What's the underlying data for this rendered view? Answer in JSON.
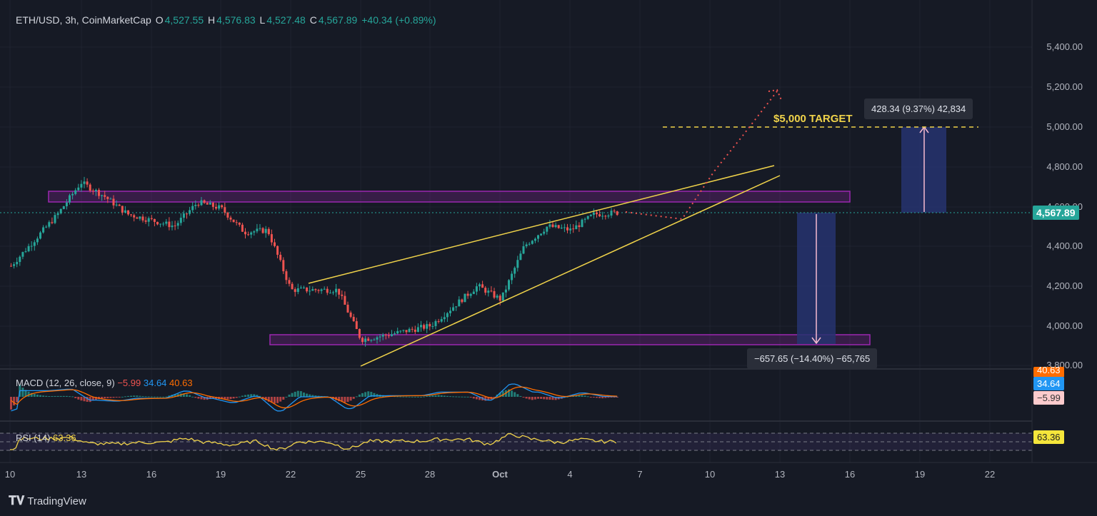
{
  "header": {
    "symbol": "ETH/USD, 3h, CoinMarketCap",
    "o_label": "O",
    "o_value": "4,527.55",
    "h_label": "H",
    "h_value": "4,576.83",
    "l_label": "L",
    "l_value": "4,527.48",
    "c_label": "C",
    "c_value": "4,567.89",
    "change": "+40.34 (+0.89%)"
  },
  "price_axis": [
    "5,400.00",
    "5,200.00",
    "5,000.00",
    "4,800.00",
    "4,600.00",
    "4,400.00",
    "4,200.00",
    "4,000.00",
    "3,800.00"
  ],
  "current_price": "4,567.89",
  "date_axis": [
    "10",
    "13",
    "16",
    "19",
    "22",
    "25",
    "28",
    "Oct",
    "4",
    "7",
    "10",
    "13",
    "16",
    "19",
    "22"
  ],
  "annotations": {
    "target_label": "$5,000 TARGET",
    "up_measure": "428.34 (9.37%) 42,834",
    "down_measure": "−657.65 (−14.40%) −65,765"
  },
  "macd": {
    "label": "MACD (12, 26, close, 9)",
    "hist": "−5.99",
    "macd": "34.64",
    "signal": "40.63",
    "pill_signal": "40.63",
    "pill_macd": "34.64",
    "pill_hist": "−5.99"
  },
  "rsi": {
    "label": "RSI (14)",
    "value": "63.36",
    "pill": "63.36"
  },
  "brand": {
    "name": "TradingView"
  },
  "colors": {
    "up": "#26a69a",
    "down": "#ef5350",
    "zone": "#9c27b0",
    "trend": "#f0d34a",
    "measure": "#283a7a"
  },
  "chart_data": {
    "type": "candlestick",
    "price_range": [
      3800,
      5400
    ],
    "close_path": [
      {
        "x": "Sep 10",
        "y": 4300
      },
      {
        "x": "Sep 12",
        "y": 4560
      },
      {
        "x": "Sep 13",
        "y": 4720
      },
      {
        "x": "Sep 14",
        "y": 4650
      },
      {
        "x": "Sep 15",
        "y": 4560
      },
      {
        "x": "Sep 17",
        "y": 4500
      },
      {
        "x": "Sep 18",
        "y": 4620
      },
      {
        "x": "Sep 19",
        "y": 4590
      },
      {
        "x": "Sep 20",
        "y": 4470
      },
      {
        "x": "Sep 21",
        "y": 4480
      },
      {
        "x": "Sep 22",
        "y": 4180
      },
      {
        "x": "Sep 24",
        "y": 4180
      },
      {
        "x": "Sep 25",
        "y": 3930
      },
      {
        "x": "Sep 26",
        "y": 3950
      },
      {
        "x": "Sep 28",
        "y": 4000
      },
      {
        "x": "Sep 30",
        "y": 4200
      },
      {
        "x": "Oct 1",
        "y": 4130
      },
      {
        "x": "Oct 2",
        "y": 4400
      },
      {
        "x": "Oct 3",
        "y": 4500
      },
      {
        "x": "Oct 4",
        "y": 4480
      },
      {
        "x": "Oct 5",
        "y": 4560
      },
      {
        "x": "Oct 6",
        "y": 4567.89
      }
    ]
  }
}
